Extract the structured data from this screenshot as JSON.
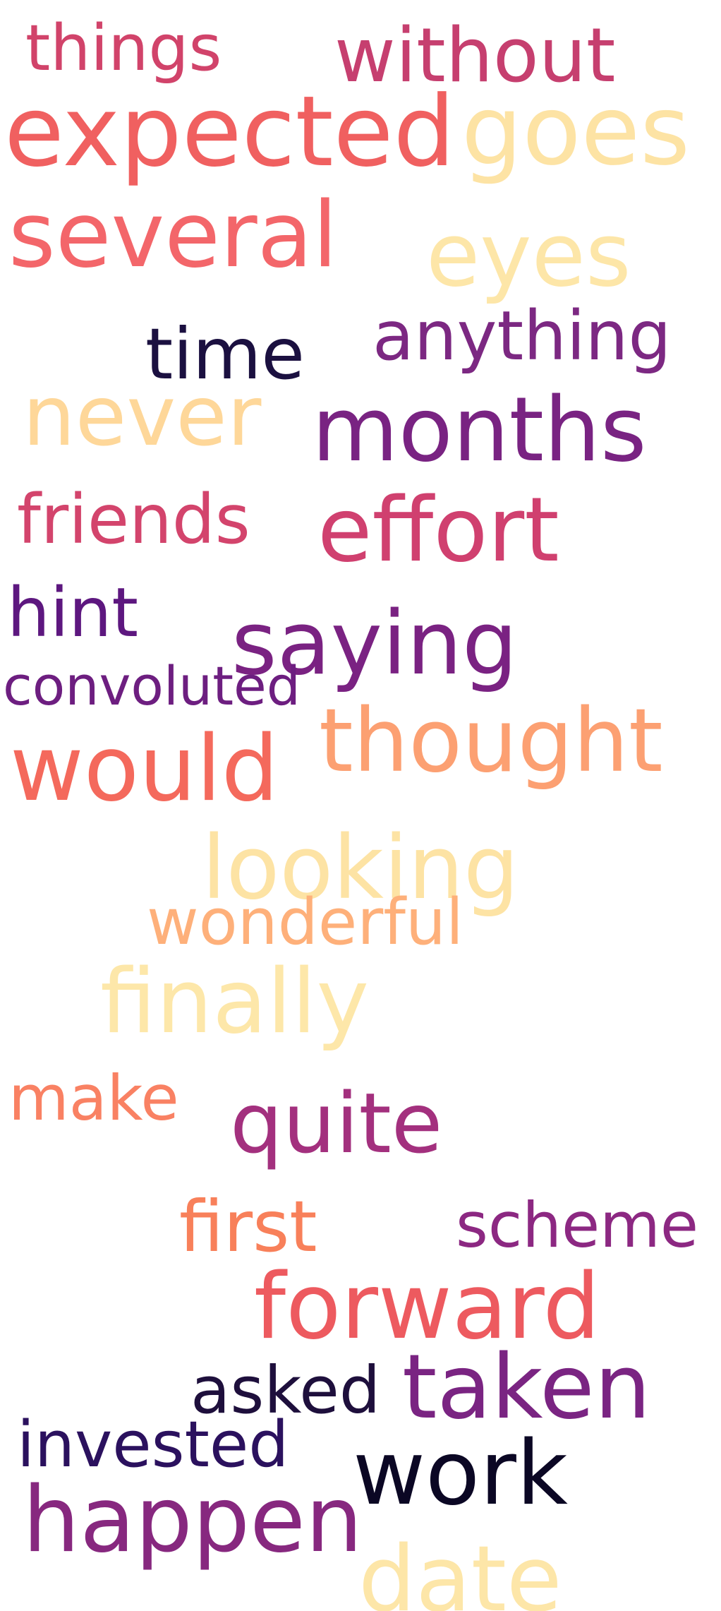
{
  "words": [
    {
      "id": "things",
      "text": "things",
      "color": "#d1436a"
    },
    {
      "id": "without",
      "text": "without",
      "color": "#c63f6f"
    },
    {
      "id": "expected",
      "text": "expected",
      "color": "#f06060"
    },
    {
      "id": "goes",
      "text": "goes",
      "color": "#fde3a4"
    },
    {
      "id": "several",
      "text": "several",
      "color": "#f3666a"
    },
    {
      "id": "eyes",
      "text": "eyes",
      "color": "#fde6a8"
    },
    {
      "id": "anything",
      "text": "anything",
      "color": "#7c2882"
    },
    {
      "id": "time",
      "text": "time",
      "color": "#1b1040"
    },
    {
      "id": "never",
      "text": "never",
      "color": "#fed799"
    },
    {
      "id": "months",
      "text": "months",
      "color": "#792382"
    },
    {
      "id": "friends",
      "text": "friends",
      "color": "#d3446c"
    },
    {
      "id": "effort",
      "text": "effort",
      "color": "#d0406f"
    },
    {
      "id": "hint",
      "text": "hint",
      "color": "#5d177f"
    },
    {
      "id": "saying",
      "text": "saying",
      "color": "#7a2282"
    },
    {
      "id": "convoluted",
      "text": "convoluted",
      "color": "#6d1e80"
    },
    {
      "id": "thought",
      "text": "thought",
      "color": "#fca072"
    },
    {
      "id": "would",
      "text": "would",
      "color": "#f4695c"
    },
    {
      "id": "looking",
      "text": "looking",
      "color": "#fde3a4"
    },
    {
      "id": "wonderful",
      "text": "wonderful",
      "color": "#feb07a"
    },
    {
      "id": "finally",
      "text": "finally",
      "color": "#fde7a9"
    },
    {
      "id": "make",
      "text": "make",
      "color": "#f98163"
    },
    {
      "id": "quite",
      "text": "quite",
      "color": "#a3307e"
    },
    {
      "id": "first",
      "text": "first",
      "color": "#f8805a"
    },
    {
      "id": "scheme",
      "text": "scheme",
      "color": "#8c2882"
    },
    {
      "id": "forward",
      "text": "forward",
      "color": "#ed5a5f"
    },
    {
      "id": "asked",
      "text": "asked",
      "color": "#1e0f3c"
    },
    {
      "id": "taken",
      "text": "taken",
      "color": "#7a2482"
    },
    {
      "id": "invested",
      "text": "invested",
      "color": "#2b115e"
    },
    {
      "id": "work",
      "text": "work",
      "color": "#0b0724"
    },
    {
      "id": "happen",
      "text": "happen",
      "color": "#87287f"
    },
    {
      "id": "date",
      "text": "date",
      "color": "#fde6a8"
    }
  ]
}
